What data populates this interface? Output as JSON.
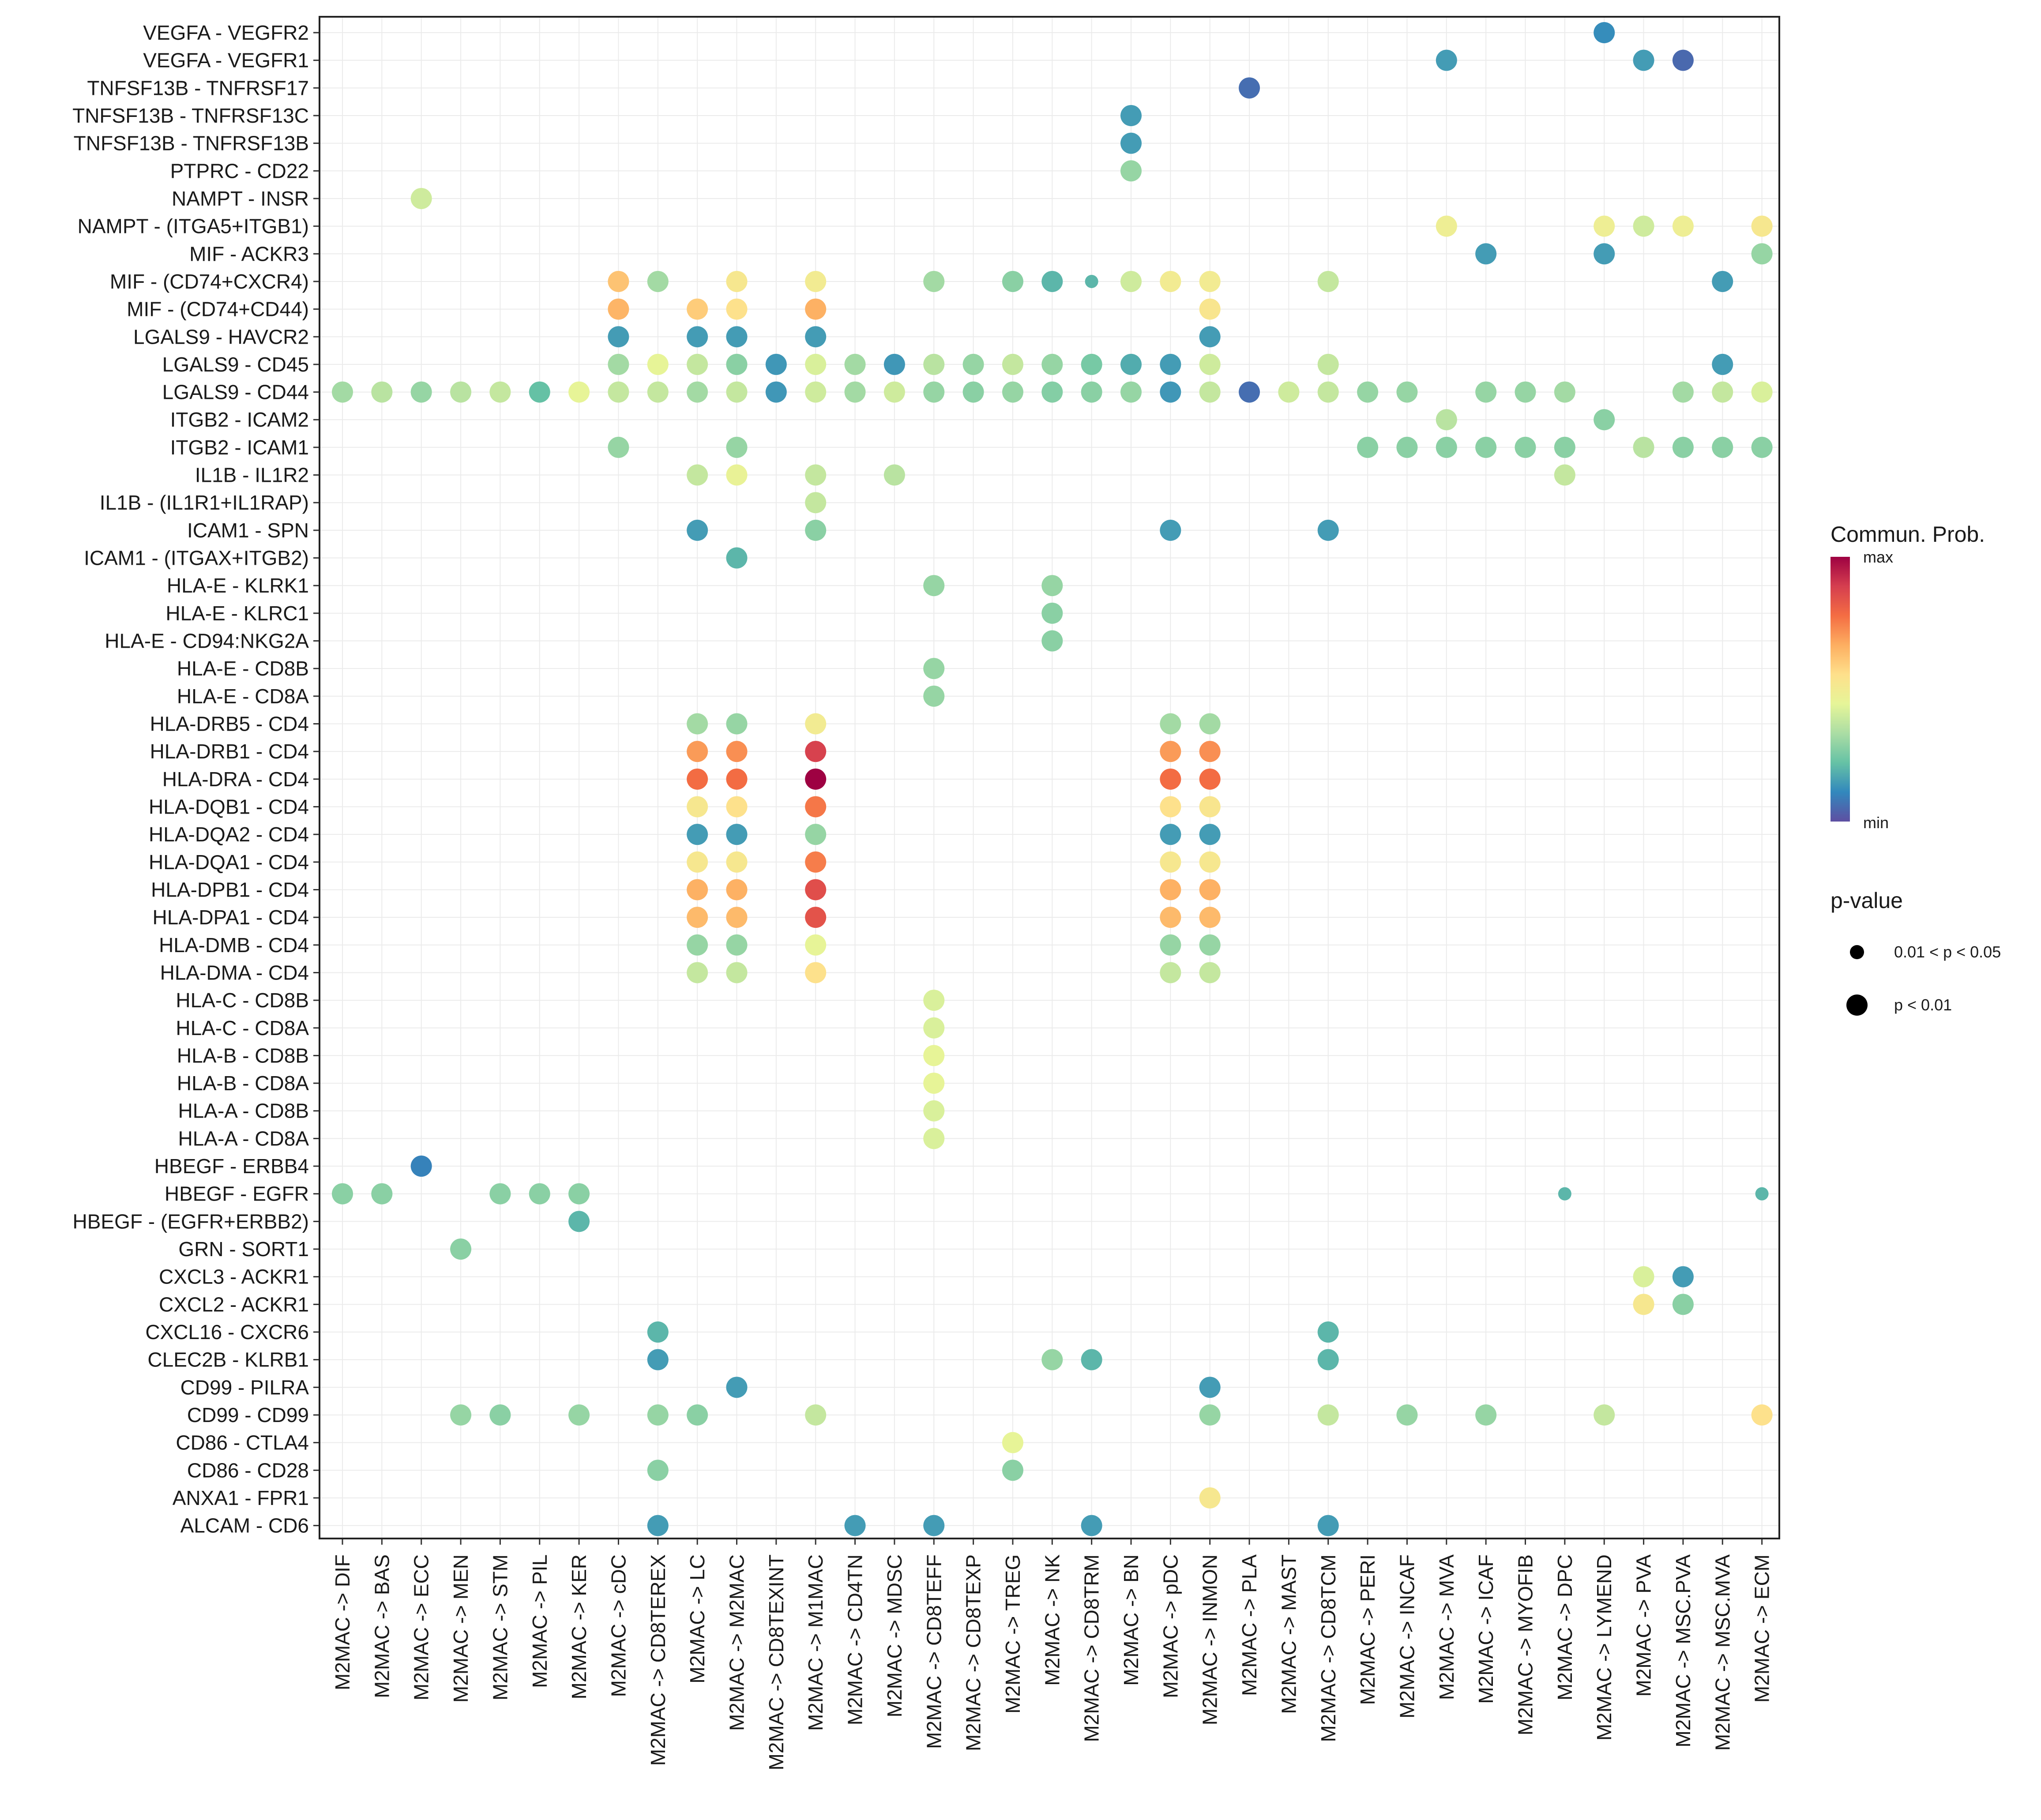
{
  "chart_data": {
    "type": "bubble",
    "y_categories": [
      "VEGFA - VEGFR2",
      "VEGFA - VEGFR1",
      "TNFSF13B - TNFRSF17",
      "TNFSF13B - TNFRSF13C",
      "TNFSF13B - TNFRSF13B",
      "PTPRC - CD22",
      "NAMPT - INSR",
      "NAMPT - (ITGA5+ITGB1)",
      "MIF - ACKR3",
      "MIF - (CD74+CXCR4)",
      "MIF - (CD74+CD44)",
      "LGALS9 - HAVCR2",
      "LGALS9 - CD45",
      "LGALS9 - CD44",
      "ITGB2 - ICAM2",
      "ITGB2 - ICAM1",
      "IL1B - IL1R2",
      "IL1B - (IL1R1+IL1RAP)",
      "ICAM1 - SPN",
      "ICAM1 - (ITGAX+ITGB2)",
      "HLA-E - KLRK1",
      "HLA-E - KLRC1",
      "HLA-E - CD94:NKG2A",
      "HLA-E - CD8B",
      "HLA-E - CD8A",
      "HLA-DRB5 - CD4",
      "HLA-DRB1 - CD4",
      "HLA-DRA - CD4",
      "HLA-DQB1 - CD4",
      "HLA-DQA2 - CD4",
      "HLA-DQA1 - CD4",
      "HLA-DPB1 - CD4",
      "HLA-DPA1 - CD4",
      "HLA-DMB - CD4",
      "HLA-DMA - CD4",
      "HLA-C - CD8B",
      "HLA-C - CD8A",
      "HLA-B - CD8B",
      "HLA-B - CD8A",
      "HLA-A - CD8B",
      "HLA-A - CD8A",
      "HBEGF - ERBB4",
      "HBEGF - EGFR",
      "HBEGF - (EGFR+ERBB2)",
      "GRN - SORT1",
      "CXCL3 - ACKR1",
      "CXCL2 - ACKR1",
      "CXCL16 - CXCR6",
      "CLEC2B - KLRB1",
      "CD99 - PILRA",
      "CD99 - CD99",
      "CD86 - CTLA4",
      "CD86 - CD28",
      "ANXA1 - FPR1",
      "ALCAM - CD6"
    ],
    "x_categories": [
      "M2MAC -> DIF",
      "M2MAC -> BAS",
      "M2MAC -> ECC",
      "M2MAC -> MEN",
      "M2MAC -> STM",
      "M2MAC -> PIL",
      "M2MAC -> KER",
      "M2MAC -> cDC",
      "M2MAC -> CD8TEREX",
      "M2MAC -> LC",
      "M2MAC -> M2MAC",
      "M2MAC -> CD8TEXINT",
      "M2MAC -> M1MAC",
      "M2MAC -> CD4TN",
      "M2MAC -> MDSC",
      "M2MAC -> CD8TEFF",
      "M2MAC -> CD8TEXP",
      "M2MAC -> TREG",
      "M2MAC -> NK",
      "M2MAC -> CD8TRM",
      "M2MAC -> BN",
      "M2MAC -> pDC",
      "M2MAC -> INMON",
      "M2MAC -> PLA",
      "M2MAC -> MAST",
      "M2MAC -> CD8TCM",
      "M2MAC -> PERI",
      "M2MAC -> INCAF",
      "M2MAC -> MVA",
      "M2MAC -> ICAF",
      "M2MAC -> MYOFIB",
      "M2MAC -> DPC",
      "M2MAC -> LYMEND",
      "M2MAC -> PVA",
      "M2MAC -> MSC.PVA",
      "M2MAC -> MSC.MVA",
      "M2MAC -> ECM"
    ],
    "points_note": "Each point: [x index, y index, relative communication probability 0-1, p-value class (1 = p < 0.01, 0 = 0.01 < p < 0.05)]",
    "points": [
      [
        32,
        0,
        0.12,
        1
      ],
      [
        28,
        1,
        0.15,
        1
      ],
      [
        33,
        1,
        0.15,
        1
      ],
      [
        34,
        1,
        0.05,
        1
      ],
      [
        23,
        2,
        0.06,
        1
      ],
      [
        20,
        3,
        0.15,
        1
      ],
      [
        20,
        4,
        0.15,
        1
      ],
      [
        20,
        5,
        0.3,
        1
      ],
      [
        2,
        6,
        0.4,
        1
      ],
      [
        28,
        7,
        0.48,
        1
      ],
      [
        32,
        7,
        0.48,
        1
      ],
      [
        33,
        7,
        0.4,
        1
      ],
      [
        34,
        7,
        0.48,
        1
      ],
      [
        36,
        7,
        0.52,
        1
      ],
      [
        29,
        8,
        0.15,
        1
      ],
      [
        32,
        8,
        0.15,
        1
      ],
      [
        36,
        8,
        0.3,
        1
      ],
      [
        7,
        9,
        0.62,
        1
      ],
      [
        8,
        9,
        0.32,
        1
      ],
      [
        10,
        9,
        0.52,
        1
      ],
      [
        12,
        9,
        0.5,
        1
      ],
      [
        15,
        9,
        0.32,
        1
      ],
      [
        17,
        9,
        0.28,
        1
      ],
      [
        18,
        9,
        0.2,
        1
      ],
      [
        19,
        9,
        0.2,
        0
      ],
      [
        20,
        9,
        0.4,
        1
      ],
      [
        21,
        9,
        0.5,
        1
      ],
      [
        22,
        9,
        0.5,
        1
      ],
      [
        25,
        9,
        0.38,
        1
      ],
      [
        35,
        9,
        0.15,
        1
      ],
      [
        7,
        10,
        0.65,
        1
      ],
      [
        9,
        10,
        0.6,
        1
      ],
      [
        10,
        10,
        0.55,
        1
      ],
      [
        12,
        10,
        0.66,
        1
      ],
      [
        22,
        10,
        0.53,
        1
      ],
      [
        7,
        11,
        0.15,
        1
      ],
      [
        9,
        11,
        0.15,
        1
      ],
      [
        10,
        11,
        0.15,
        1
      ],
      [
        12,
        11,
        0.15,
        1
      ],
      [
        22,
        11,
        0.15,
        1
      ],
      [
        7,
        12,
        0.32,
        1
      ],
      [
        8,
        12,
        0.45,
        1
      ],
      [
        9,
        12,
        0.38,
        1
      ],
      [
        10,
        12,
        0.28,
        1
      ],
      [
        11,
        12,
        0.14,
        1
      ],
      [
        12,
        12,
        0.42,
        1
      ],
      [
        13,
        12,
        0.32,
        1
      ],
      [
        14,
        12,
        0.14,
        1
      ],
      [
        15,
        12,
        0.36,
        1
      ],
      [
        16,
        12,
        0.3,
        1
      ],
      [
        17,
        12,
        0.38,
        1
      ],
      [
        18,
        12,
        0.3,
        1
      ],
      [
        19,
        12,
        0.25,
        1
      ],
      [
        20,
        12,
        0.18,
        1
      ],
      [
        21,
        12,
        0.15,
        1
      ],
      [
        22,
        12,
        0.4,
        1
      ],
      [
        25,
        12,
        0.38,
        1
      ],
      [
        35,
        12,
        0.15,
        1
      ],
      [
        0,
        13,
        0.32,
        1
      ],
      [
        1,
        13,
        0.36,
        1
      ],
      [
        2,
        13,
        0.3,
        1
      ],
      [
        3,
        13,
        0.36,
        1
      ],
      [
        4,
        13,
        0.38,
        1
      ],
      [
        5,
        13,
        0.22,
        1
      ],
      [
        6,
        13,
        0.45,
        1
      ],
      [
        7,
        13,
        0.38,
        1
      ],
      [
        8,
        13,
        0.38,
        1
      ],
      [
        9,
        13,
        0.32,
        1
      ],
      [
        10,
        13,
        0.38,
        1
      ],
      [
        11,
        13,
        0.14,
        1
      ],
      [
        12,
        13,
        0.4,
        1
      ],
      [
        13,
        13,
        0.32,
        1
      ],
      [
        14,
        13,
        0.4,
        1
      ],
      [
        15,
        13,
        0.3,
        1
      ],
      [
        16,
        13,
        0.28,
        1
      ],
      [
        17,
        13,
        0.3,
        1
      ],
      [
        18,
        13,
        0.27,
        1
      ],
      [
        19,
        13,
        0.28,
        1
      ],
      [
        20,
        13,
        0.3,
        1
      ],
      [
        21,
        13,
        0.14,
        1
      ],
      [
        22,
        13,
        0.38,
        1
      ],
      [
        23,
        13,
        0.06,
        1
      ],
      [
        24,
        13,
        0.4,
        1
      ],
      [
        25,
        13,
        0.38,
        1
      ],
      [
        26,
        13,
        0.3,
        1
      ],
      [
        27,
        13,
        0.3,
        1
      ],
      [
        29,
        13,
        0.3,
        1
      ],
      [
        30,
        13,
        0.3,
        1
      ],
      [
        31,
        13,
        0.32,
        1
      ],
      [
        34,
        13,
        0.32,
        1
      ],
      [
        35,
        13,
        0.38,
        1
      ],
      [
        36,
        13,
        0.42,
        1
      ],
      [
        28,
        14,
        0.36,
        1
      ],
      [
        32,
        14,
        0.28,
        1
      ],
      [
        7,
        15,
        0.3,
        1
      ],
      [
        10,
        15,
        0.3,
        1
      ],
      [
        26,
        15,
        0.28,
        1
      ],
      [
        27,
        15,
        0.28,
        1
      ],
      [
        28,
        15,
        0.28,
        1
      ],
      [
        29,
        15,
        0.28,
        1
      ],
      [
        30,
        15,
        0.28,
        1
      ],
      [
        31,
        15,
        0.28,
        1
      ],
      [
        33,
        15,
        0.36,
        1
      ],
      [
        34,
        15,
        0.28,
        1
      ],
      [
        35,
        15,
        0.28,
        1
      ],
      [
        36,
        15,
        0.28,
        1
      ],
      [
        9,
        16,
        0.38,
        1
      ],
      [
        10,
        16,
        0.46,
        1
      ],
      [
        12,
        16,
        0.38,
        1
      ],
      [
        14,
        16,
        0.36,
        1
      ],
      [
        31,
        16,
        0.38,
        1
      ],
      [
        12,
        17,
        0.38,
        1
      ],
      [
        9,
        18,
        0.15,
        1
      ],
      [
        12,
        18,
        0.28,
        1
      ],
      [
        21,
        18,
        0.15,
        1
      ],
      [
        25,
        18,
        0.15,
        1
      ],
      [
        10,
        19,
        0.2,
        1
      ],
      [
        15,
        20,
        0.3,
        1
      ],
      [
        18,
        20,
        0.3,
        1
      ],
      [
        18,
        21,
        0.28,
        1
      ],
      [
        18,
        22,
        0.28,
        1
      ],
      [
        15,
        23,
        0.3,
        1
      ],
      [
        15,
        24,
        0.3,
        1
      ],
      [
        9,
        25,
        0.32,
        1
      ],
      [
        10,
        25,
        0.3,
        1
      ],
      [
        12,
        25,
        0.5,
        1
      ],
      [
        21,
        25,
        0.32,
        1
      ],
      [
        22,
        25,
        0.32,
        1
      ],
      [
        9,
        26,
        0.7,
        1
      ],
      [
        10,
        26,
        0.72,
        1
      ],
      [
        12,
        26,
        0.88,
        1
      ],
      [
        21,
        26,
        0.7,
        1
      ],
      [
        22,
        26,
        0.72,
        1
      ],
      [
        9,
        27,
        0.78,
        1
      ],
      [
        10,
        27,
        0.78,
        1
      ],
      [
        12,
        27,
        1.0,
        1
      ],
      [
        21,
        27,
        0.78,
        1
      ],
      [
        22,
        27,
        0.78,
        1
      ],
      [
        9,
        28,
        0.52,
        1
      ],
      [
        10,
        28,
        0.55,
        1
      ],
      [
        12,
        28,
        0.76,
        1
      ],
      [
        21,
        28,
        0.55,
        1
      ],
      [
        22,
        28,
        0.53,
        1
      ],
      [
        9,
        29,
        0.15,
        1
      ],
      [
        10,
        29,
        0.15,
        1
      ],
      [
        12,
        29,
        0.3,
        1
      ],
      [
        21,
        29,
        0.15,
        1
      ],
      [
        22,
        29,
        0.15,
        1
      ],
      [
        9,
        30,
        0.52,
        1
      ],
      [
        10,
        30,
        0.52,
        1
      ],
      [
        12,
        30,
        0.75,
        1
      ],
      [
        21,
        30,
        0.52,
        1
      ],
      [
        22,
        30,
        0.52,
        1
      ],
      [
        9,
        31,
        0.66,
        1
      ],
      [
        10,
        31,
        0.66,
        1
      ],
      [
        12,
        31,
        0.85,
        1
      ],
      [
        21,
        31,
        0.66,
        1
      ],
      [
        22,
        31,
        0.66,
        1
      ],
      [
        9,
        32,
        0.64,
        1
      ],
      [
        10,
        32,
        0.64,
        1
      ],
      [
        12,
        32,
        0.84,
        1
      ],
      [
        21,
        32,
        0.64,
        1
      ],
      [
        22,
        32,
        0.64,
        1
      ],
      [
        9,
        33,
        0.3,
        1
      ],
      [
        10,
        33,
        0.3,
        1
      ],
      [
        12,
        33,
        0.45,
        1
      ],
      [
        21,
        33,
        0.3,
        1
      ],
      [
        22,
        33,
        0.3,
        1
      ],
      [
        9,
        34,
        0.38,
        1
      ],
      [
        10,
        34,
        0.38,
        1
      ],
      [
        12,
        34,
        0.55,
        1
      ],
      [
        21,
        34,
        0.38,
        1
      ],
      [
        22,
        34,
        0.38,
        1
      ],
      [
        15,
        35,
        0.42,
        1
      ],
      [
        15,
        36,
        0.42,
        1
      ],
      [
        15,
        37,
        0.45,
        1
      ],
      [
        15,
        38,
        0.45,
        1
      ],
      [
        15,
        39,
        0.42,
        1
      ],
      [
        15,
        40,
        0.42,
        1
      ],
      [
        2,
        41,
        0.1,
        1
      ],
      [
        0,
        42,
        0.28,
        1
      ],
      [
        1,
        42,
        0.28,
        1
      ],
      [
        4,
        42,
        0.28,
        1
      ],
      [
        5,
        42,
        0.28,
        1
      ],
      [
        6,
        42,
        0.28,
        1
      ],
      [
        31,
        42,
        0.2,
        0
      ],
      [
        36,
        42,
        0.2,
        0
      ],
      [
        6,
        43,
        0.2,
        1
      ],
      [
        3,
        44,
        0.28,
        1
      ],
      [
        33,
        45,
        0.42,
        1
      ],
      [
        34,
        45,
        0.15,
        1
      ],
      [
        33,
        46,
        0.52,
        1
      ],
      [
        34,
        46,
        0.28,
        1
      ],
      [
        8,
        47,
        0.2,
        1
      ],
      [
        25,
        47,
        0.2,
        1
      ],
      [
        8,
        48,
        0.15,
        1
      ],
      [
        18,
        48,
        0.3,
        1
      ],
      [
        19,
        48,
        0.2,
        1
      ],
      [
        25,
        48,
        0.2,
        1
      ],
      [
        10,
        49,
        0.15,
        1
      ],
      [
        22,
        49,
        0.15,
        1
      ],
      [
        3,
        50,
        0.3,
        1
      ],
      [
        4,
        50,
        0.28,
        1
      ],
      [
        6,
        50,
        0.3,
        1
      ],
      [
        8,
        50,
        0.3,
        1
      ],
      [
        9,
        50,
        0.28,
        1
      ],
      [
        12,
        50,
        0.38,
        1
      ],
      [
        22,
        50,
        0.3,
        1
      ],
      [
        25,
        50,
        0.38,
        1
      ],
      [
        27,
        50,
        0.3,
        1
      ],
      [
        29,
        50,
        0.3,
        1
      ],
      [
        32,
        50,
        0.38,
        1
      ],
      [
        36,
        50,
        0.55,
        1
      ],
      [
        17,
        51,
        0.45,
        1
      ],
      [
        8,
        52,
        0.28,
        1
      ],
      [
        17,
        52,
        0.28,
        1
      ],
      [
        22,
        53,
        0.52,
        1
      ],
      [
        8,
        54,
        0.15,
        1
      ],
      [
        13,
        54,
        0.15,
        1
      ],
      [
        15,
        54,
        0.15,
        1
      ],
      [
        19,
        54,
        0.15,
        1
      ],
      [
        25,
        54,
        0.15,
        1
      ]
    ],
    "colorbar": {
      "title": "Commun. Prob.",
      "max_label": "max",
      "min_label": "min",
      "palette": [
        "#5e4fa2",
        "#3288bd",
        "#66c2a5",
        "#abdda4",
        "#e6f598",
        "#fee08b",
        "#fdae61",
        "#f46d43",
        "#d53e4f",
        "#9e0142"
      ]
    },
    "size_legend": {
      "title": "p-value",
      "items": [
        {
          "label": "0.01 < p < 0.05",
          "class": 0
        },
        {
          "label": "p < 0.01",
          "class": 1
        }
      ]
    }
  }
}
